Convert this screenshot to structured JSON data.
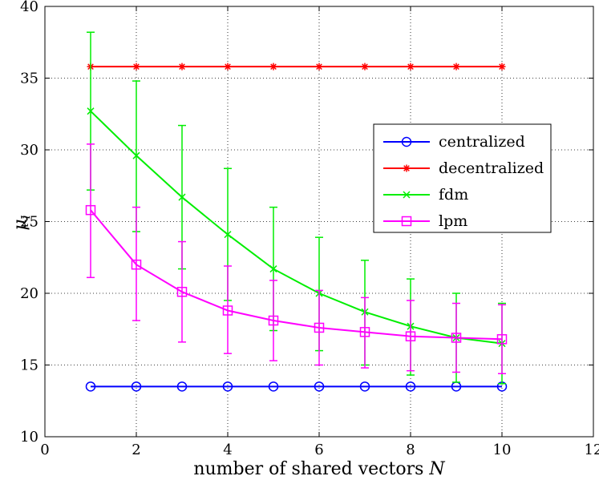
{
  "chart_data": {
    "type": "line",
    "title": "",
    "xlabel_text": "number of shared vectors ",
    "xlabel_var": "N",
    "ylabel_main": "μ",
    "ylabel_sub": "i",
    "xlim": [
      0,
      12
    ],
    "ylim": [
      10,
      40
    ],
    "xticks": [
      0,
      2,
      4,
      6,
      8,
      10,
      12
    ],
    "yticks": [
      10,
      15,
      20,
      25,
      30,
      35,
      40
    ],
    "grid": true,
    "legend_position": "center-right",
    "x": [
      1,
      2,
      3,
      4,
      5,
      6,
      7,
      8,
      9,
      10
    ],
    "series": [
      {
        "name": "centralized",
        "color": "#0000ff",
        "marker": "circle",
        "values": [
          13.5,
          13.5,
          13.5,
          13.5,
          13.5,
          13.5,
          13.5,
          13.5,
          13.5,
          13.5
        ]
      },
      {
        "name": "decentralized",
        "color": "#ff0000",
        "marker": "star",
        "values": [
          35.8,
          35.8,
          35.8,
          35.8,
          35.8,
          35.8,
          35.8,
          35.8,
          35.8,
          35.8
        ]
      },
      {
        "name": "fdm",
        "color": "#00ee00",
        "marker": "x",
        "values": [
          32.7,
          29.6,
          26.7,
          24.1,
          21.7,
          20.0,
          18.7,
          17.7,
          16.9,
          16.5
        ],
        "err_low": [
          27.2,
          24.3,
          21.7,
          19.5,
          17.4,
          16.0,
          15.0,
          14.3,
          13.8,
          13.7
        ],
        "err_high": [
          38.2,
          34.8,
          31.7,
          28.7,
          26.0,
          23.9,
          22.3,
          21.0,
          20.0,
          19.3
        ]
      },
      {
        "name": "lpm",
        "color": "#ff00ff",
        "marker": "square",
        "values": [
          25.8,
          22.0,
          20.1,
          18.8,
          18.1,
          17.6,
          17.3,
          17.0,
          16.9,
          16.8
        ],
        "err_low": [
          21.1,
          18.1,
          16.6,
          15.8,
          15.3,
          15.0,
          14.8,
          14.6,
          14.5,
          14.4
        ],
        "err_high": [
          30.4,
          26.0,
          23.6,
          21.9,
          20.9,
          20.2,
          19.7,
          19.5,
          19.3,
          19.2
        ]
      }
    ]
  }
}
